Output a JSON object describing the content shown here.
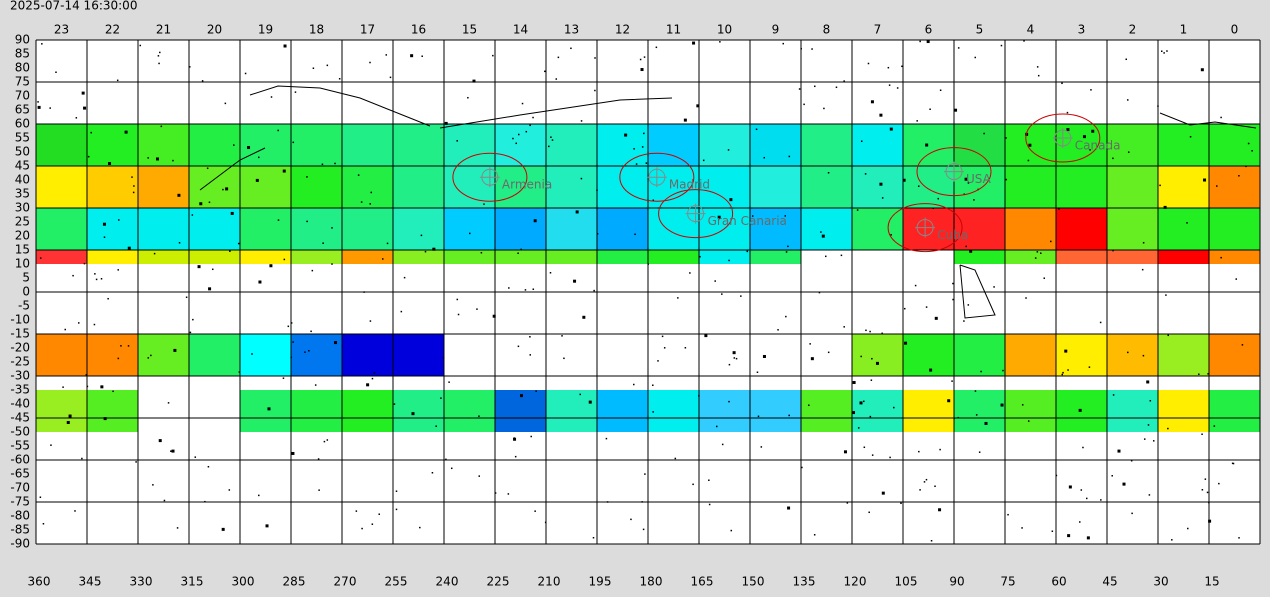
{
  "chart_data": {
    "type": "skymap",
    "timestamp": "2025-07-14 16:30:00",
    "xlim": [
      360,
      0
    ],
    "ylim": [
      -90,
      90
    ],
    "xticks": [
      360,
      345,
      330,
      315,
      300,
      285,
      270,
      255,
      240,
      225,
      210,
      195,
      180,
      165,
      150,
      135,
      120,
      105,
      90,
      75,
      60,
      45,
      30,
      15
    ],
    "yticks": [
      90,
      85,
      80,
      75,
      70,
      65,
      60,
      55,
      50,
      45,
      40,
      35,
      30,
      25,
      20,
      15,
      10,
      5,
      0,
      -5,
      -10,
      -15,
      -20,
      -25,
      -30,
      -35,
      -40,
      -45,
      -50,
      -55,
      -60,
      -65,
      -70,
      -75,
      -80,
      -85,
      -90
    ],
    "hours": [
      23,
      22,
      21,
      20,
      19,
      18,
      17,
      16,
      15,
      14,
      13,
      12,
      11,
      10,
      9,
      8,
      7,
      6,
      5,
      4,
      3,
      2,
      1,
      0
    ],
    "bands": [
      {
        "dec": [
          60,
          45
        ],
        "colors": [
          "#22dd22",
          "#22ee22",
          "#44ee22",
          "#22ee44",
          "#22ee66",
          "#22ee66",
          "#22ee88",
          "#22ee88",
          "#22eebb",
          "#22eedd",
          "#22eebb",
          "#00eeee",
          "#00ccff",
          "#22eedd",
          "#00ddee",
          "#22ee88",
          "#00eeee",
          "#22ee66",
          "#22dd44",
          "#22ee22",
          "#22ee22",
          "#44ee22",
          "#22ee22",
          "#22ee22"
        ]
      },
      {
        "dec": [
          45,
          30
        ],
        "colors": [
          "#ffee00",
          "#ffcc00",
          "#ffaa00",
          "#66ee22",
          "#66ee22",
          "#22ee22",
          "#22ee44",
          "#22ee88",
          "#22eebb",
          "#22ee88",
          "#22eebb",
          "#00eeee",
          "#00eeee",
          "#00eeee",
          "#22eedd",
          "#22ee88",
          "#22eebb",
          "#22ee88",
          "#22ee66",
          "#22ee22",
          "#22ee22",
          "#66ee22",
          "#ffee00",
          "#ff8800"
        ]
      },
      {
        "dec": [
          30,
          15
        ],
        "colors": [
          "#22ee66",
          "#00eeee",
          "#00eeee",
          "#00eeee",
          "#22ee66",
          "#22ee88",
          "#22ee88",
          "#22eebb",
          "#00ccff",
          "#00aaff",
          "#22ddee",
          "#00aaff",
          "#00eeee",
          "#00eeee",
          "#00bbff",
          "#00eeee",
          "#22ee66",
          "#ff2222",
          "#ff2222",
          "#ff8800",
          "#ff0000",
          "#66ee22",
          "#22ee22",
          "#22ee22"
        ]
      },
      {
        "dec": [
          15,
          10
        ],
        "colors": [
          "#ff3333",
          "#ffee00",
          "#ccee00",
          "#ccee00",
          "#ffee00",
          "#99ee22",
          "#ff9900",
          "#88ee22",
          "#66ee22",
          "#66ee22",
          "#66ee22",
          "#22ee44",
          "#22ee22",
          "#00eeee",
          "#22ee66",
          null,
          null,
          null,
          "#22ee22",
          "#66ee22",
          "#ff6633",
          "#ff6633",
          "#ff0000",
          "#ff8800"
        ]
      },
      {
        "dec": [
          -15,
          -30
        ],
        "colors": [
          "#ff8800",
          "#ff8800",
          "#66ee22",
          "#22ee66",
          "#00ffff",
          "#0077ee",
          "#0000dd",
          "#0000dd",
          null,
          null,
          null,
          null,
          null,
          null,
          null,
          null,
          "#88ee22",
          "#22ee22",
          "#22ee44",
          "#ffaa00",
          "#ffee00",
          "#ffbb00",
          "#99ee22",
          "#ff8800"
        ]
      },
      {
        "dec": [
          -35,
          -50
        ],
        "colors": [
          "#99ee22",
          "#55ee22",
          null,
          null,
          "#22ee66",
          "#22ee44",
          "#22ee22",
          "#22ee88",
          "#22ee66",
          "#0066dd",
          "#22eebb",
          "#00bbff",
          "#00eeee",
          "#33ccff",
          "#33ccff",
          "#55ee22",
          "#22eebb",
          "#ffee00",
          "#22ee66",
          "#55ee22",
          "#22ee22",
          "#22eebb",
          "#ffee00",
          "#22ee44"
        ]
      }
    ],
    "sites": [
      {
        "label": "Armenia",
        "ra": 226.5,
        "dec": 41
      },
      {
        "label": "Madrid",
        "ra": 177.4,
        "dec": 41
      },
      {
        "label": "Gran Canaria",
        "ra": 166,
        "dec": 28
      },
      {
        "label": "USA",
        "ra": 90,
        "dec": 43
      },
      {
        "label": "Cuba",
        "ra": 98.5,
        "dec": 23
      },
      {
        "label": "Canada",
        "ra": 58,
        "dec": 55
      }
    ]
  }
}
